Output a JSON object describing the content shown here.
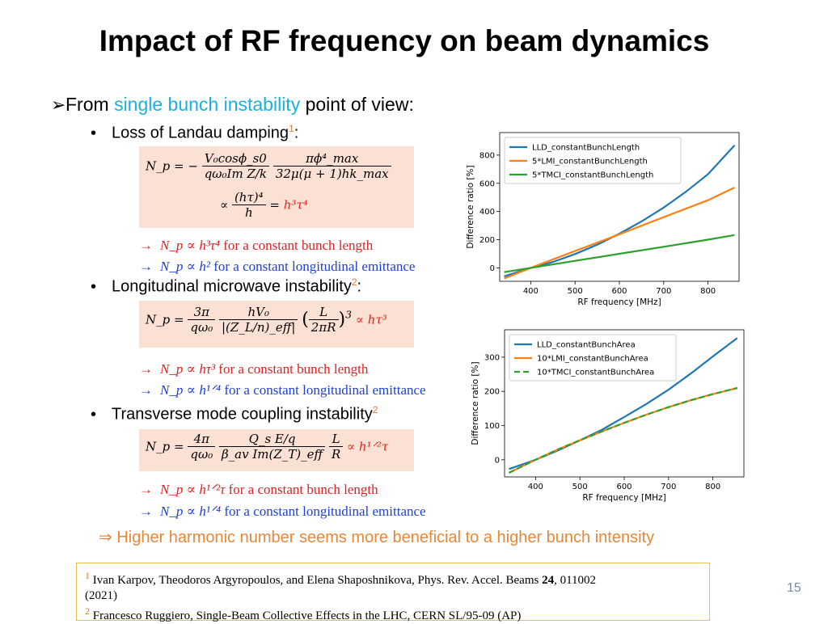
{
  "slide": {
    "title": "Impact of RF frequency on beam dynamics",
    "page_number": "15"
  },
  "main_bullet": {
    "prefix": "From ",
    "highlight": "single bunch instability",
    "suffix": " point of view:"
  },
  "sections": [
    {
      "label": "Loss of Landau damping",
      "ref": "1",
      "formula": {
        "lhs": "N_p = −",
        "frac1_num": "V₀cosϕ_s0",
        "frac1_den": "qω₀Im Z/k",
        "frac2_num": "πϕ⁴_max",
        "frac2_den": "32μ(μ + 1)hk_max",
        "line2_prop": "∝",
        "line2_num": "(hτ)⁴",
        "line2_den": "h",
        "line2_eq": "=",
        "line2_result": "h³τ⁴"
      },
      "notes": [
        {
          "arrow": "→",
          "symbol": "N_p",
          "prop": "∝",
          "expr": "h³τ⁴",
          "text": " for a constant bunch length",
          "color": "#e02020"
        },
        {
          "arrow": "→",
          "symbol": "N_p",
          "prop": "∝",
          "expr": "h²",
          "text": " for a constant longitudinal emittance",
          "color": "#1d3fd6"
        }
      ]
    },
    {
      "label": "Longitudinal microwave instability",
      "ref": "2",
      "formula": {
        "lhs": "N_p =",
        "frac1_num": "3π",
        "frac1_den": "qω₀",
        "frac2_num": "hV₀",
        "frac2_den": "|(Z_L/n)_eff|",
        "frac3_num": "L",
        "frac3_den": "2πR",
        "power": "3",
        "result": "∝ hτ³"
      },
      "notes": [
        {
          "arrow": "→",
          "symbol": "N_p",
          "prop": "∝",
          "expr": "hτ³",
          "text": " for a constant bunch length",
          "color": "#e02020"
        },
        {
          "arrow": "→",
          "symbol": "N_p",
          "prop": "∝",
          "expr": "h¹ᐟ⁴",
          "text": " for a constant longitudinal emittance",
          "color": "#1d3fd6"
        }
      ]
    },
    {
      "label": "Transverse mode coupling instability",
      "ref": "2",
      "formula": {
        "lhs": "N_p =",
        "frac1_num": "4π",
        "frac1_den": "qω₀",
        "frac2_num": "Q_s E/q",
        "frac2_den": "β_av Im(Z_T)_eff",
        "frac3_num": "L",
        "frac3_den": "R",
        "result": "∝ h¹ᐟ²τ"
      },
      "notes": [
        {
          "arrow": "→",
          "symbol": "N_p",
          "prop": "∝",
          "expr": "h¹ᐟ²τ",
          "text": " for a constant bunch length",
          "color": "#e02020"
        },
        {
          "arrow": "→",
          "symbol": "N_p",
          "prop": "∝",
          "expr": "h¹ᐟ⁴",
          "text": " for a constant longitudinal emittance",
          "color": "#1d3fd6"
        }
      ]
    }
  ],
  "conclusion": "⇒ Higher harmonic number seems more beneficial to a higher bunch intensity",
  "references": [
    {
      "num": "1",
      "text_a": " Ivan Karpov, Theodoros Argyropoulos, and Elena Shaposhnikova, Phys. Rev. Accel. Beams ",
      "bold": "24",
      "text_b": ", 011002",
      "text_c": "(2021)"
    },
    {
      "num": "2",
      "text_a": " Francesco Ruggiero, Single-Beam Collective Effects in the LHC, CERN SL/95-09 (AP)"
    }
  ],
  "chart_data": [
    {
      "type": "line",
      "title": "",
      "xlabel": "RF frequency [MHz]",
      "ylabel": "Difference ratio [%]",
      "xlim": [
        330,
        870
      ],
      "ylim": [
        -95,
        960
      ],
      "xticks": [
        400,
        500,
        600,
        700,
        800
      ],
      "yticks": [
        0,
        200,
        400,
        600,
        800
      ],
      "grid": false,
      "legend": "top-left",
      "series": [
        {
          "name": "LLD_constantBunchLength",
          "color": "#1f77b4",
          "dash": false,
          "x": [
            340,
            400,
            450,
            500,
            550,
            600,
            650,
            700,
            750,
            800,
            860
          ],
          "y": [
            -60,
            0,
            42,
            98,
            165,
            243,
            330,
            428,
            540,
            665,
            870
          ]
        },
        {
          "name": "5*LMI_constantBunchLength",
          "color": "#ff7f0e",
          "dash": false,
          "x": [
            340,
            400,
            500,
            600,
            700,
            800,
            860
          ],
          "y": [
            -75,
            0,
            120,
            238,
            360,
            480,
            570
          ]
        },
        {
          "name": "5*TMCI_constantBunchLength",
          "color": "#2ca02c",
          "dash": false,
          "x": [
            340,
            400,
            500,
            600,
            700,
            800,
            860
          ],
          "y": [
            -30,
            0,
            50,
            100,
            150,
            200,
            233
          ]
        }
      ]
    },
    {
      "type": "line",
      "title": "",
      "xlabel": "RF frequency [MHz]",
      "ylabel": "Difference ratio [%]",
      "xlim": [
        330,
        870
      ],
      "ylim": [
        -50,
        380
      ],
      "xticks": [
        400,
        500,
        600,
        700,
        800
      ],
      "yticks": [
        0,
        100,
        200,
        300
      ],
      "grid": false,
      "legend": "top-left",
      "series": [
        {
          "name": "LLD_constantBunchArea",
          "color": "#1f77b4",
          "dash": false,
          "x": [
            340,
            400,
            450,
            500,
            550,
            600,
            650,
            700,
            750,
            800,
            855
          ],
          "y": [
            -27,
            0,
            27,
            57,
            88,
            125,
            163,
            205,
            252,
            302,
            356
          ]
        },
        {
          "name": "10*LMI_constantBunchArea",
          "color": "#ff7f0e",
          "dash": false,
          "x": [
            340,
            400,
            450,
            500,
            550,
            600,
            650,
            700,
            750,
            800,
            855
          ],
          "y": [
            -38,
            0,
            30,
            57,
            83,
            108,
            132,
            154,
            174,
            192,
            210
          ]
        },
        {
          "name": "10*TMCI_constantBunchArea",
          "color": "#2ca02c",
          "dash": true,
          "x": [
            340,
            400,
            450,
            500,
            550,
            600,
            650,
            700,
            750,
            800,
            855
          ],
          "y": [
            -38,
            0,
            30,
            57,
            83,
            108,
            132,
            154,
            174,
            192,
            210
          ]
        }
      ]
    }
  ]
}
